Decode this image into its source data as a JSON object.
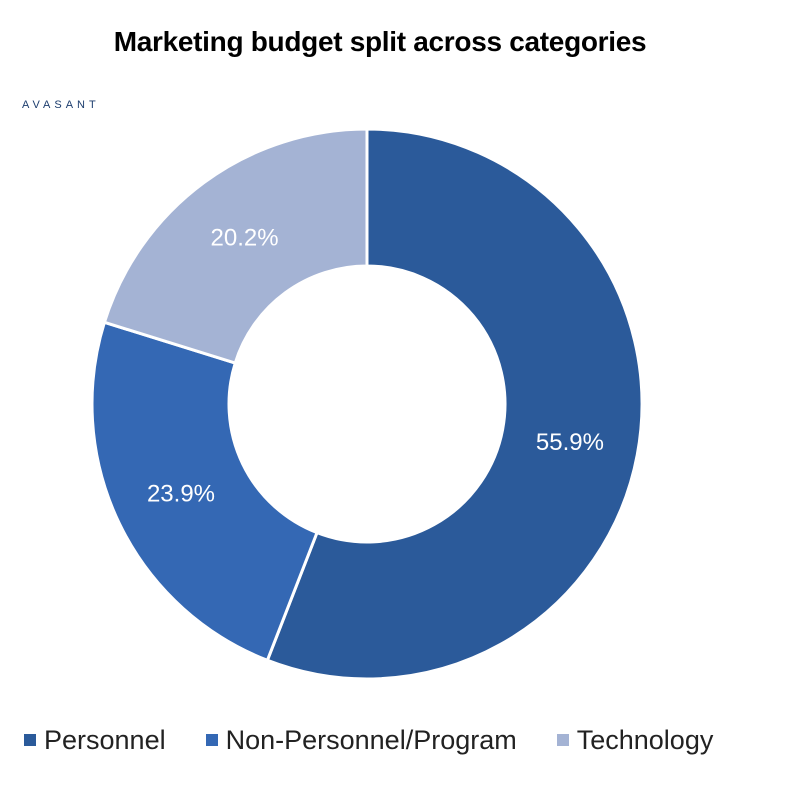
{
  "header": {
    "title": "Marketing budget split across categories",
    "brand": "AVASANT"
  },
  "chart_data": {
    "type": "pie",
    "variant": "donut",
    "title": "Marketing budget split across categories",
    "categories": [
      "Personnel",
      "Non-Personnel/Program",
      "Technology"
    ],
    "values": [
      55.9,
      23.9,
      20.2
    ],
    "value_labels": [
      "55.9%",
      "23.9%",
      "20.2%"
    ],
    "colors": [
      "#2B5A9A",
      "#3468B4",
      "#A4B3D4"
    ],
    "legend_position": "bottom"
  }
}
